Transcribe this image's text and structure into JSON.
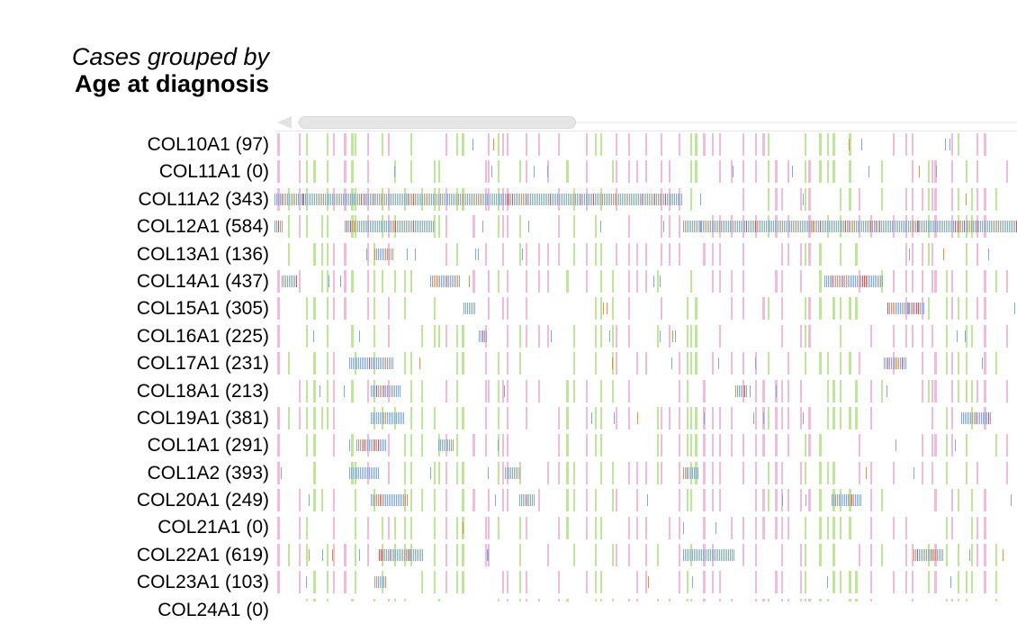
{
  "header": {
    "line1": "Cases grouped by",
    "line2": "Age at diagnosis"
  },
  "colors": {
    "male_like": "#f1bcd9",
    "female_like": "#bfe59a",
    "mutation_blue": "#7fa8e6",
    "mutation_orange": "#f28c3a",
    "mutation_red": "#e54b4b",
    "scroll_thumb": "#e6e6e6"
  },
  "rows": [
    {
      "label": "COL10A1 (97)"
    },
    {
      "label": "COL11A1 (0)"
    },
    {
      "label": "COL11A2 (343)",
      "dense": [
        [
          0.0,
          0.55
        ]
      ]
    },
    {
      "label": "COL12A1 (584)",
      "dense": [
        [
          0.0,
          0.012
        ],
        [
          0.095,
          0.215
        ],
        [
          0.55,
          1.0
        ]
      ]
    },
    {
      "label": "COL13A1 (136)",
      "dense": [
        [
          0.135,
          0.16
        ]
      ]
    },
    {
      "label": "COL14A1 (437)",
      "dense": [
        [
          0.01,
          0.03
        ],
        [
          0.21,
          0.25
        ],
        [
          0.74,
          0.77
        ],
        [
          0.76,
          0.82
        ]
      ]
    },
    {
      "label": "COL15A1 (305)",
      "dense": [
        [
          0.255,
          0.27
        ],
        [
          0.825,
          0.875
        ]
      ]
    },
    {
      "label": "COL16A1 (225)",
      "dense": [
        [
          0.275,
          0.285
        ]
      ]
    },
    {
      "label": "COL17A1 (231)",
      "dense": [
        [
          0.1,
          0.16
        ],
        [
          0.82,
          0.85
        ]
      ]
    },
    {
      "label": "COL18A1 (213)",
      "dense": [
        [
          0.13,
          0.17
        ],
        [
          0.62,
          0.635
        ]
      ]
    },
    {
      "label": "COL19A1 (381)",
      "dense": [
        [
          0.13,
          0.175
        ],
        [
          0.925,
          0.965
        ]
      ]
    },
    {
      "label": "COL1A1 (291)",
      "dense": [
        [
          0.11,
          0.15
        ],
        [
          0.22,
          0.24
        ]
      ]
    },
    {
      "label": "COL1A2 (393)",
      "dense": [
        [
          0.1,
          0.14
        ],
        [
          0.31,
          0.33
        ],
        [
          0.55,
          0.57
        ]
      ]
    },
    {
      "label": "COL20A1 (249)",
      "dense": [
        [
          0.13,
          0.18
        ],
        [
          0.33,
          0.35
        ],
        [
          0.75,
          0.79
        ]
      ]
    },
    {
      "label": "COL21A1 (0)"
    },
    {
      "label": "COL22A1 (619)",
      "dense": [
        [
          0.14,
          0.2
        ],
        [
          0.55,
          0.62
        ],
        [
          0.86,
          0.9
        ]
      ]
    },
    {
      "label": "COL23A1 (103)",
      "dense": [
        [
          0.135,
          0.15
        ]
      ]
    },
    {
      "label": "COL24A1 (0)"
    }
  ]
}
